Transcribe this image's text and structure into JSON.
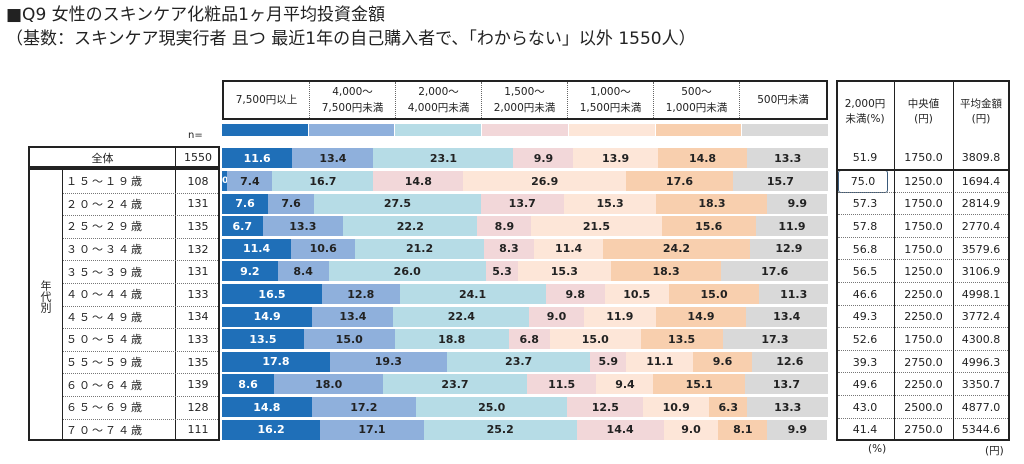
{
  "title": "■Q9  女性のスキンケア化粧品1ヶ月平均投資金額",
  "subtitle": "（基数：スキンケア現実行者 且つ 最近1年の自己購入者で、「わからない」以外 1550人）",
  "n_label": "n=",
  "group_label": "年代別",
  "right_headers": [
    "2,000円\n未満(%)",
    "中央値\n(円)",
    "平均金額\n(円)"
  ],
  "unit_pct": "(%)",
  "unit_yen": "(円)",
  "chart_data": {
    "type": "bar",
    "stacked": true,
    "orientation": "horizontal",
    "xlim": [
      0,
      100
    ],
    "categories": [
      "7,500円以上",
      "4,000～\n7,500円未満",
      "2,000～\n4,000円未満",
      "1,500～\n2,000円未満",
      "1,000～\n1,500円未満",
      "500～\n1,000円未満",
      "500円未満"
    ],
    "colors": [
      "#1f6fb8",
      "#8fb0dc",
      "#b6dce6",
      "#f2d7d9",
      "#fde6d8",
      "#f8cfae",
      "#d9d9d9"
    ],
    "rows": [
      {
        "label": "全体",
        "n": "1550",
        "values": [
          11.6,
          13.4,
          23.1,
          9.9,
          13.9,
          14.8,
          13.3
        ],
        "under2000": "51.9",
        "median": "1750.0",
        "mean": "3809.8"
      },
      {
        "label": "１５～１９歳",
        "n": "108",
        "values": [
          0.9,
          7.4,
          16.7,
          14.8,
          26.9,
          17.6,
          15.7
        ],
        "under2000": "75.0",
        "median": "1250.0",
        "mean": "1694.4"
      },
      {
        "label": "２０～２４歳",
        "n": "131",
        "values": [
          7.6,
          7.6,
          27.5,
          13.7,
          15.3,
          18.3,
          9.9
        ],
        "under2000": "57.3",
        "median": "1750.0",
        "mean": "2814.9"
      },
      {
        "label": "２５～２９歳",
        "n": "135",
        "values": [
          6.7,
          13.3,
          22.2,
          8.9,
          21.5,
          15.6,
          11.9
        ],
        "under2000": "57.8",
        "median": "1750.0",
        "mean": "2770.4"
      },
      {
        "label": "３０～３４歳",
        "n": "132",
        "values": [
          11.4,
          10.6,
          21.2,
          8.3,
          11.4,
          24.2,
          12.9
        ],
        "under2000": "56.8",
        "median": "1750.0",
        "mean": "3579.6"
      },
      {
        "label": "３５～３９歳",
        "n": "131",
        "values": [
          9.2,
          8.4,
          26.0,
          5.3,
          15.3,
          18.3,
          17.6
        ],
        "under2000": "56.5",
        "median": "1250.0",
        "mean": "3106.9"
      },
      {
        "label": "４０～４４歳",
        "n": "133",
        "values": [
          16.5,
          12.8,
          24.1,
          9.8,
          10.5,
          15.0,
          11.3
        ],
        "under2000": "46.6",
        "median": "2250.0",
        "mean": "4998.1"
      },
      {
        "label": "４５～４９歳",
        "n": "134",
        "values": [
          14.9,
          13.4,
          22.4,
          9.0,
          11.9,
          14.9,
          13.4
        ],
        "under2000": "49.3",
        "median": "2250.0",
        "mean": "3772.4"
      },
      {
        "label": "５０～５４歳",
        "n": "133",
        "values": [
          13.5,
          15.0,
          18.8,
          6.8,
          15.0,
          13.5,
          17.3
        ],
        "under2000": "52.6",
        "median": "1750.0",
        "mean": "4300.8"
      },
      {
        "label": "５５～５９歳",
        "n": "135",
        "values": [
          17.8,
          19.3,
          23.7,
          5.9,
          11.1,
          9.6,
          12.6
        ],
        "under2000": "39.3",
        "median": "2750.0",
        "mean": "4996.3"
      },
      {
        "label": "６０～６４歳",
        "n": "139",
        "values": [
          8.6,
          18.0,
          23.7,
          11.5,
          9.4,
          15.1,
          13.7
        ],
        "under2000": "49.6",
        "median": "2250.0",
        "mean": "3350.7"
      },
      {
        "label": "６５～６９歳",
        "n": "128",
        "values": [
          14.8,
          17.2,
          25.0,
          12.5,
          10.9,
          6.3,
          13.3
        ],
        "under2000": "43.0",
        "median": "2500.0",
        "mean": "4877.0"
      },
      {
        "label": "７０～７４歳",
        "n": "111",
        "values": [
          16.2,
          17.1,
          25.2,
          14.4,
          9.0,
          8.1,
          9.9
        ],
        "under2000": "41.4",
        "median": "2750.0",
        "mean": "5344.6"
      }
    ]
  }
}
